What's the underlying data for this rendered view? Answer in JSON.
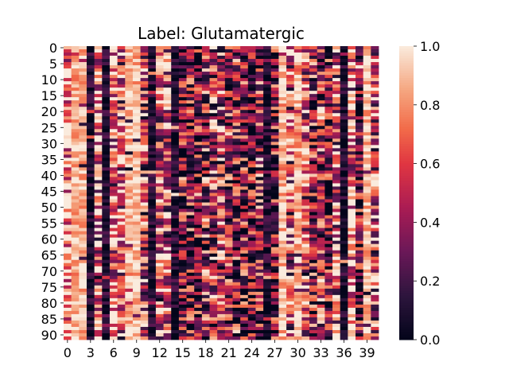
{
  "chart_data": {
    "type": "heatmap",
    "title": "Label: Glutamatergic",
    "rows": 92,
    "cols": 41,
    "x_tick_labels": [
      "0",
      "3",
      "6",
      "9",
      "12",
      "15",
      "18",
      "21",
      "24",
      "27",
      "30",
      "33",
      "36",
      "39"
    ],
    "y_tick_labels": [
      "0",
      "5",
      "10",
      "15",
      "20",
      "25",
      "30",
      "35",
      "40",
      "45",
      "50",
      "55",
      "60",
      "65",
      "70",
      "75",
      "80",
      "85",
      "90"
    ],
    "colorbar": {
      "range": [
        0.0,
        1.0
      ],
      "tick_labels": [
        "0.0",
        "0.2",
        "0.4",
        "0.6",
        "0.8",
        "1.0"
      ],
      "colormap": "rocket"
    },
    "column_tendency": [
      0.85,
      0.88,
      0.9,
      0.08,
      0.75,
      0.1,
      0.78,
      0.6,
      0.92,
      0.9,
      0.55,
      0.08,
      0.65,
      0.7,
      0.1,
      0.3,
      0.35,
      0.3,
      0.45,
      0.5,
      0.55,
      0.45,
      0.4,
      0.35,
      0.3,
      0.45,
      0.08,
      0.35,
      0.9,
      0.6,
      0.88,
      0.7,
      0.4,
      0.5,
      0.3,
      0.65,
      0.08,
      0.85,
      0.25,
      0.9,
      0.6
    ],
    "grid": false,
    "legend": "colorbar-right"
  }
}
